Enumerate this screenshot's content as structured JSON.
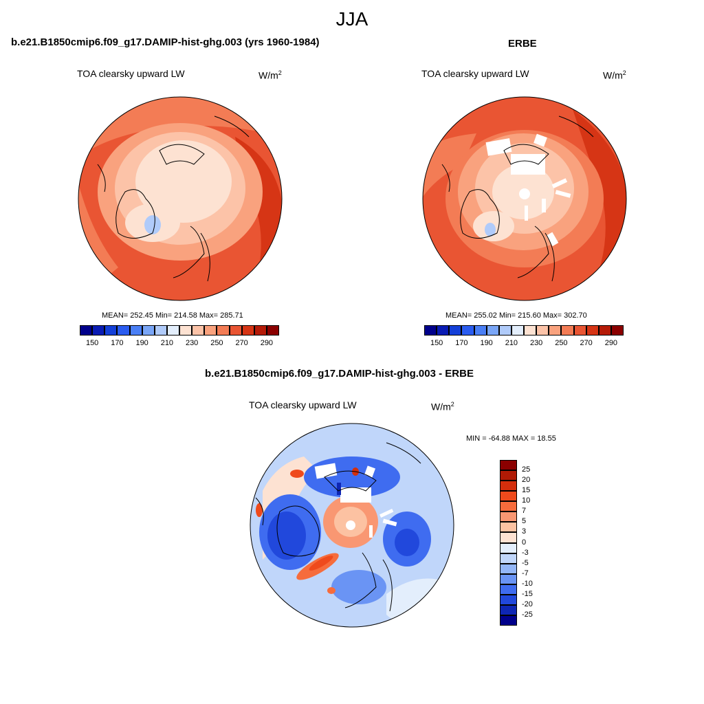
{
  "figure": {
    "season": "JJA"
  },
  "panels": {
    "model": {
      "title": "b.e21.B1850cmip6.f09_g17.DAMIP-hist-ghg.003 (yrs 1960-1984)",
      "subtitle": "TOA clearsky upward LW",
      "units_base": "W/m",
      "units_sup": "2",
      "stats": "MEAN= 252.45  Min= 214.58  Max= 285.71"
    },
    "obs": {
      "title": "ERBE",
      "subtitle": "TOA clearsky upward LW",
      "units_base": "W/m",
      "units_sup": "2",
      "stats": "MEAN= 255.02  Min= 215.60  Max= 302.70"
    },
    "diff": {
      "title": "b.e21.B1850cmip6.f09_g17.DAMIP-hist-ghg.003 - ERBE",
      "subtitle": "TOA clearsky upward LW",
      "units_base": "W/m",
      "units_sup": "2",
      "stats": "MIN = -64.88 MAX =  18.55"
    }
  },
  "colorbars": {
    "main": {
      "colors": [
        "#00008b",
        "#0a1cb4",
        "#1440d8",
        "#2a5cf0",
        "#4a7ff5",
        "#7aa6f7",
        "#b0cbfa",
        "#e3eefc",
        "#fde2d2",
        "#fcc3a8",
        "#f9a27e",
        "#f37c55",
        "#e95533",
        "#d63515",
        "#b51b08",
        "#8b0000"
      ],
      "tick_labels": [
        "150",
        "170",
        "190",
        "210",
        "230",
        "250",
        "270",
        "290"
      ]
    },
    "diff": {
      "colors": [
        "#8b0000",
        "#b01a05",
        "#d42e0c",
        "#ef4a1c",
        "#f66c3c",
        "#f99772",
        "#fcc2a2",
        "#fde2d2",
        "#e3eefc",
        "#c0d6fa",
        "#93b6f7",
        "#6a94f4",
        "#3f6cf0",
        "#2148dc",
        "#0e26b4",
        "#00008b"
      ],
      "tick_labels": [
        "25",
        "20",
        "15",
        "10",
        "7",
        "5",
        "3",
        "0",
        "-3",
        "-5",
        "-7",
        "-10",
        "-15",
        "-20",
        "-25"
      ]
    }
  },
  "chart_data": [
    {
      "type": "heatmap",
      "title": "b.e21.B1850cmip6.f09_g17.DAMIP-hist-ghg.003 (yrs 1960-1984)",
      "subtitle": "TOA clearsky upward LW",
      "units": "W/m2",
      "projection": "north polar stereographic",
      "mean": 252.45,
      "min": 214.58,
      "max": 285.71,
      "levels": [
        150,
        170,
        190,
        210,
        230,
        250,
        270,
        290
      ]
    },
    {
      "type": "heatmap",
      "title": "ERBE",
      "subtitle": "TOA clearsky upward LW",
      "units": "W/m2",
      "projection": "north polar stereographic",
      "mean": 255.02,
      "min": 215.6,
      "max": 302.7,
      "levels": [
        150,
        170,
        190,
        210,
        230,
        250,
        270,
        290
      ]
    },
    {
      "type": "heatmap",
      "title": "b.e21.B1850cmip6.f09_g17.DAMIP-hist-ghg.003 - ERBE",
      "subtitle": "TOA clearsky upward LW",
      "units": "W/m2",
      "projection": "north polar stereographic",
      "min": -64.88,
      "max": 18.55,
      "levels": [
        25,
        20,
        15,
        10,
        7,
        5,
        3,
        0,
        -3,
        -5,
        -7,
        -10,
        -15,
        -20,
        -25
      ]
    }
  ]
}
